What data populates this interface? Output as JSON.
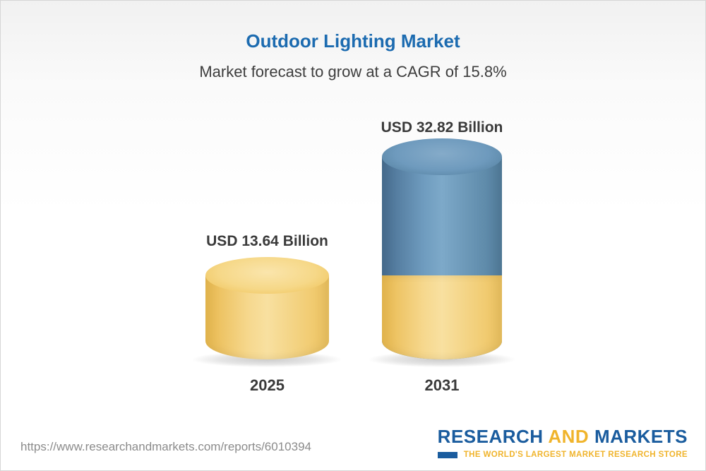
{
  "header": {
    "title": "Outdoor Lighting Market",
    "subtitle": "Market forecast to grow at a CAGR of 15.8%"
  },
  "chart_data": {
    "type": "bar",
    "categories": [
      "2025",
      "2031"
    ],
    "values": [
      13.64,
      32.82
    ],
    "unit": "USD Billion",
    "value_labels": [
      "USD 13.64 Billion",
      "USD 32.82 Billion"
    ],
    "title": "Outdoor Lighting Market",
    "subtitle": "Market forecast to grow at a CAGR of 15.8%",
    "ylim": [
      0,
      35
    ],
    "grid": false,
    "legend": false,
    "colors": {
      "bar_2025": "#f3cd73",
      "bar_2031_top_segment": "#5d89ac",
      "bar_2031_base_segment": "#f3cd73",
      "title": "#1c6bb0"
    }
  },
  "footer": {
    "url": "https://www.researchandmarkets.com/reports/6010394"
  },
  "logo": {
    "part1": "RESEARCH",
    "part2": "AND",
    "part3": "MARKETS",
    "tagline": "THE WORLD'S LARGEST MARKET RESEARCH STORE",
    "brand_blue": "#1a5c9e",
    "brand_yellow": "#f0b42c"
  }
}
